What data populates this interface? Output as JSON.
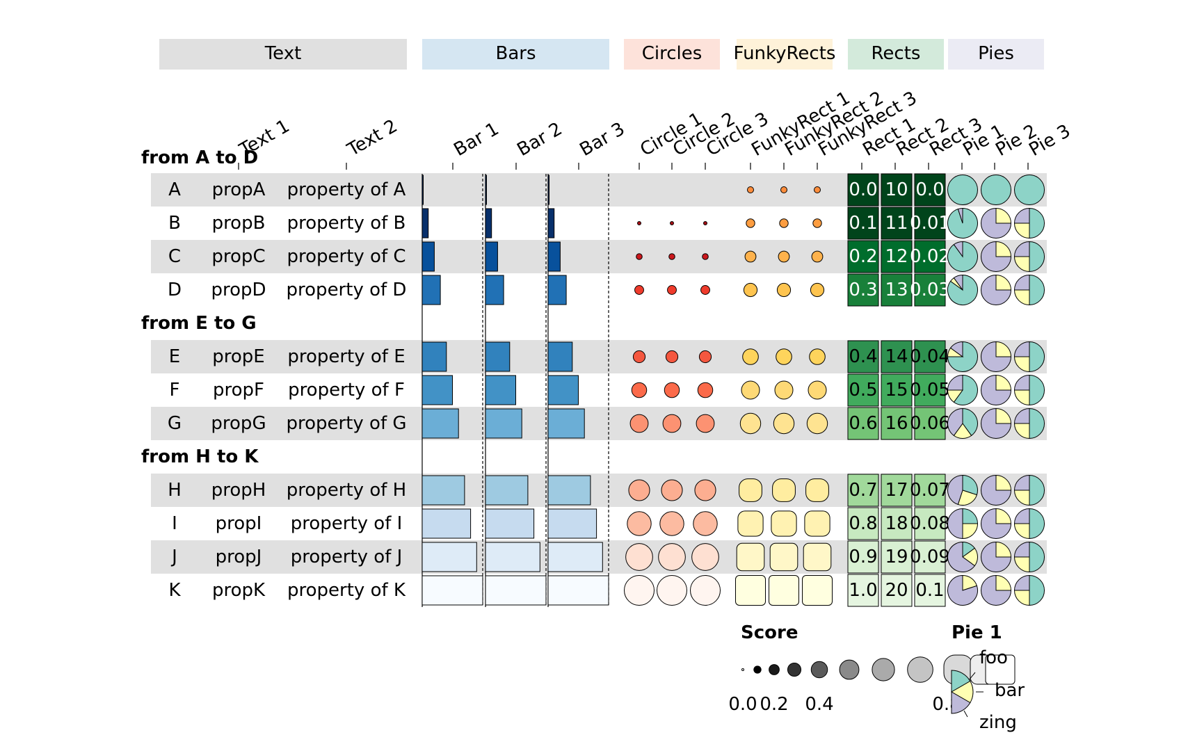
{
  "chart_data": {
    "type": "table",
    "title": "",
    "column_groups": [
      {
        "name": "Text",
        "color": "#e0e0e0",
        "columns": [
          "Text 1",
          "Text 2"
        ]
      },
      {
        "name": "Bars",
        "color": "#d5e6f2",
        "columns": [
          "Bar 1",
          "Bar 2",
          "Bar 3"
        ]
      },
      {
        "name": "Circles",
        "color": "#fde2da",
        "columns": [
          "Circle 1",
          "Circle 2",
          "Circle 3"
        ]
      },
      {
        "name": "FunkyRects",
        "color": "#fef2d9",
        "columns": [
          "FunkyRect 1",
          "FunkyRect 2",
          "FunkyRect 3"
        ]
      },
      {
        "name": "Rects",
        "color": "#d3eadb",
        "columns": [
          "Rect 1",
          "Rect 2",
          "Rect 3"
        ]
      },
      {
        "name": "Pies",
        "color": "#ebebf4",
        "columns": [
          "Pie 1",
          "Pie 2",
          "Pie 3"
        ]
      }
    ],
    "row_groups": [
      {
        "label": "from A to D",
        "rows": [
          "A",
          "B",
          "C",
          "D"
        ]
      },
      {
        "label": "from E to G",
        "rows": [
          "E",
          "F",
          "G"
        ]
      },
      {
        "label": "from H to K",
        "rows": [
          "H",
          "I",
          "J",
          "K"
        ]
      }
    ],
    "rows": [
      {
        "id": "A",
        "text1": "propA",
        "text2": "property of A",
        "score": 0.0,
        "rect1": "0.0",
        "rect2": "10",
        "rect3": "0.0"
      },
      {
        "id": "B",
        "text1": "propB",
        "text2": "property of B",
        "score": 0.1,
        "rect1": "0.1",
        "rect2": "11",
        "rect3": "0.01"
      },
      {
        "id": "C",
        "text1": "propC",
        "text2": "property of C",
        "score": 0.2,
        "rect1": "0.2",
        "rect2": "12",
        "rect3": "0.02"
      },
      {
        "id": "D",
        "text1": "propD",
        "text2": "property of D",
        "score": 0.3,
        "rect1": "0.3",
        "rect2": "13",
        "rect3": "0.03"
      },
      {
        "id": "E",
        "text1": "propE",
        "text2": "property of E",
        "score": 0.4,
        "rect1": "0.4",
        "rect2": "14",
        "rect3": "0.04"
      },
      {
        "id": "F",
        "text1": "propF",
        "text2": "property of F",
        "score": 0.5,
        "rect1": "0.5",
        "rect2": "15",
        "rect3": "0.05"
      },
      {
        "id": "G",
        "text1": "propG",
        "text2": "property of G",
        "score": 0.6,
        "rect1": "0.6",
        "rect2": "16",
        "rect3": "0.06"
      },
      {
        "id": "H",
        "text1": "propH",
        "text2": "property of H",
        "score": 0.7,
        "rect1": "0.7",
        "rect2": "17",
        "rect3": "0.07"
      },
      {
        "id": "I",
        "text1": "propI",
        "text2": "property of I",
        "score": 0.8,
        "rect1": "0.8",
        "rect2": "18",
        "rect3": "0.08"
      },
      {
        "id": "J",
        "text1": "propJ",
        "text2": "property of J",
        "score": 0.9,
        "rect1": "0.9",
        "rect2": "19",
        "rect3": "0.09"
      },
      {
        "id": "K",
        "text1": "propK",
        "text2": "property of K",
        "score": 1.0,
        "rect1": "1.0",
        "rect2": "20",
        "rect3": "0.1"
      }
    ],
    "pies": {
      "categories": [
        "foo",
        "bar",
        "zing"
      ],
      "colors": [
        "#8dd3c7",
        "#ffffb3",
        "#bebada"
      ],
      "pie1": [
        [
          1.0,
          0.0,
          0.0
        ],
        [
          0.95,
          0.0,
          0.05
        ],
        [
          0.9,
          0.0,
          0.1
        ],
        [
          0.85,
          0.05,
          0.1
        ],
        [
          0.75,
          0.1,
          0.15
        ],
        [
          0.6,
          0.15,
          0.25
        ],
        [
          0.4,
          0.2,
          0.4
        ],
        [
          0.3,
          0.25,
          0.45
        ],
        [
          0.25,
          0.25,
          0.5
        ],
        [
          0.15,
          0.2,
          0.65
        ],
        [
          0.0,
          0.2,
          0.8
        ]
      ],
      "pie2": [
        [
          1.0,
          0.0,
          0.0
        ],
        [
          0.0,
          0.25,
          0.75
        ],
        [
          0.0,
          0.25,
          0.75
        ],
        [
          0.0,
          0.25,
          0.75
        ],
        [
          0.0,
          0.25,
          0.75
        ],
        [
          0.0,
          0.25,
          0.75
        ],
        [
          0.0,
          0.25,
          0.75
        ],
        [
          0.0,
          0.25,
          0.75
        ],
        [
          0.0,
          0.25,
          0.75
        ],
        [
          0.0,
          0.25,
          0.75
        ],
        [
          0.0,
          0.25,
          0.75
        ]
      ],
      "pie3": [
        [
          1.0,
          0.0,
          0.0
        ],
        [
          0.5,
          0.25,
          0.25
        ],
        [
          0.5,
          0.25,
          0.25
        ],
        [
          0.5,
          0.25,
          0.25
        ],
        [
          0.5,
          0.25,
          0.25
        ],
        [
          0.5,
          0.25,
          0.25
        ],
        [
          0.5,
          0.25,
          0.25
        ],
        [
          0.5,
          0.25,
          0.25
        ],
        [
          0.5,
          0.25,
          0.25
        ],
        [
          0.5,
          0.25,
          0.25
        ],
        [
          0.5,
          0.25,
          0.25
        ]
      ]
    },
    "palettes": {
      "bars": [
        "#08306b",
        "#08306b",
        "#08519c",
        "#2171b5",
        "#3182bd",
        "#4292c6",
        "#6baed6",
        "#9ecae1",
        "#c6dbef",
        "#deebf7",
        "#f7fbff"
      ],
      "circles": [
        "#67000d",
        "#a50f15",
        "#cb181d",
        "#ef3b2c",
        "#f4573f",
        "#fb6a4a",
        "#fc9272",
        "#fcae91",
        "#fcbba1",
        "#fee0d2",
        "#fff5f0"
      ],
      "funky": [
        "#fd8d3c",
        "#fd9d40",
        "#feb24c",
        "#fec44f",
        "#fed45c",
        "#fed976",
        "#fee391",
        "#ffeda0",
        "#fff2b2",
        "#fff7c8",
        "#ffffe0"
      ],
      "rects": [
        "#00441b",
        "#00441b",
        "#006d2c",
        "#19803a",
        "#2e9150",
        "#41ab5d",
        "#74c476",
        "#a1d99b",
        "#c7e9c0",
        "#d9f0d3",
        "#e5f5e0"
      ]
    },
    "legend_score": {
      "title": "Score",
      "tick_labels": [
        "0.0",
        "0.2",
        "0.4",
        "0.8"
      ],
      "values": [
        0.0,
        0.1,
        0.2,
        0.3,
        0.4,
        0.5,
        0.6,
        0.7,
        0.8,
        0.9,
        1.0
      ]
    },
    "legend_pie": {
      "title": "Pie 1",
      "labels": [
        "foo",
        "bar",
        "zing"
      ]
    }
  }
}
